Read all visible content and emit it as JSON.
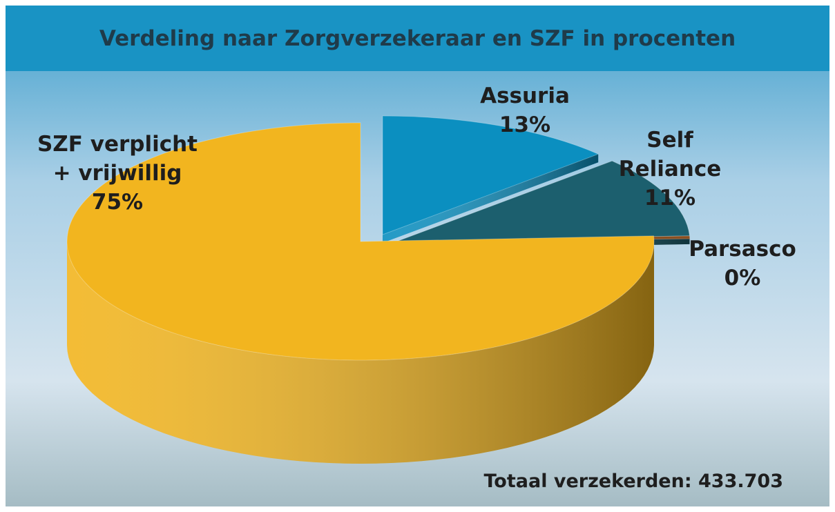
{
  "chart_data": {
    "type": "pie",
    "title": "Verdeling naar Zorgverzekeraar  en SZF in procenten",
    "categories": [
      "Assuria",
      "Self Reliance",
      "Parsasco",
      "SZF verplicht + vrijwillig"
    ],
    "values": [
      13,
      11,
      0,
      75
    ],
    "value_labels": [
      "13%",
      "11%",
      "0%",
      "75%"
    ],
    "colors": [
      "#0b8fc0",
      "#1c5f6e",
      "#8a4e1f",
      "#f2b51f"
    ],
    "annotation": "Totaal verzekerden: 433.703"
  }
}
